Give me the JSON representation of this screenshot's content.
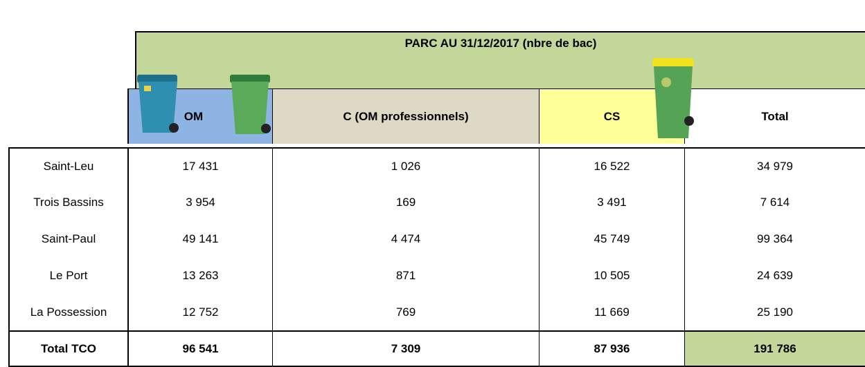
{
  "table": {
    "title": "PARC AU 31/12/2017 (nbre de bac)",
    "columns": [
      "OM",
      "C (OM professionnels)",
      "CS",
      "Total"
    ],
    "rows": [
      [
        "Saint-Leu",
        "17 431",
        "1 026",
        "16 522",
        "34 979"
      ],
      [
        "Trois Bassins",
        "3 954",
        "169",
        "3 491",
        "7 614"
      ],
      [
        "Saint-Paul",
        "49 141",
        "4 474",
        "45 749",
        "99 364"
      ],
      [
        "Le Port",
        "13 263",
        "871",
        "10 505",
        "24 639"
      ],
      [
        "La Possession",
        "12 752",
        "769",
        "11 669",
        "25 190"
      ]
    ],
    "total": [
      "Total TCO",
      "96 541",
      "7 309",
      "87 936",
      "191 786"
    ]
  }
}
